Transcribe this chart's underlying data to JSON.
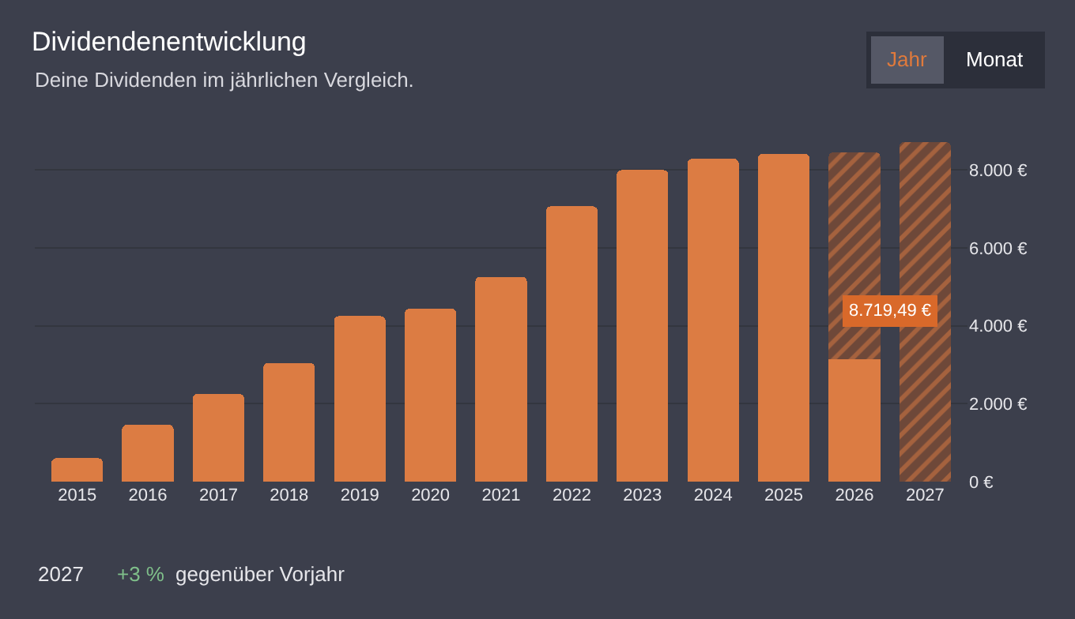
{
  "chart_data": {
    "type": "bar",
    "title": "Dividendenentwicklung",
    "subtitle": "Deine Dividenden im jährlichen Vergleich.",
    "categories": [
      "2015",
      "2016",
      "2017",
      "2018",
      "2019",
      "2020",
      "2021",
      "2022",
      "2023",
      "2024",
      "2025",
      "2026",
      "2027"
    ],
    "stacked": true,
    "series": [
      {
        "color": "#dc7c43",
        "values": [
          600,
          1460,
          2250,
          3050,
          4250,
          4440,
          5260,
          7070,
          8000,
          8290,
          8420,
          3140,
          null
        ]
      },
      {
        "color": "#6e4839",
        "values": [
          null,
          null,
          null,
          null,
          null,
          null,
          null,
          null,
          null,
          null,
          null,
          5320,
          8719.49
        ],
        "value_labels": [
          null,
          null,
          null,
          null,
          null,
          null,
          null,
          null,
          null,
          null,
          null,
          null,
          "8.719,49 €"
        ]
      }
    ],
    "ylim": [
      0,
      8800
    ],
    "yticks": [
      {
        "value": 0,
        "label": "0 €"
      },
      {
        "value": 2000,
        "label": "2.000 €"
      },
      {
        "value": 4000,
        "label": "4.000 €"
      },
      {
        "value": 6000,
        "label": "6.000 €"
      },
      {
        "value": 8000,
        "label": "8.000 €"
      }
    ],
    "grid": "y",
    "annotations": [
      "Jahr",
      "Monat",
      "2027",
      "+3 %",
      "gegenüber Vorjahr"
    ]
  }
}
